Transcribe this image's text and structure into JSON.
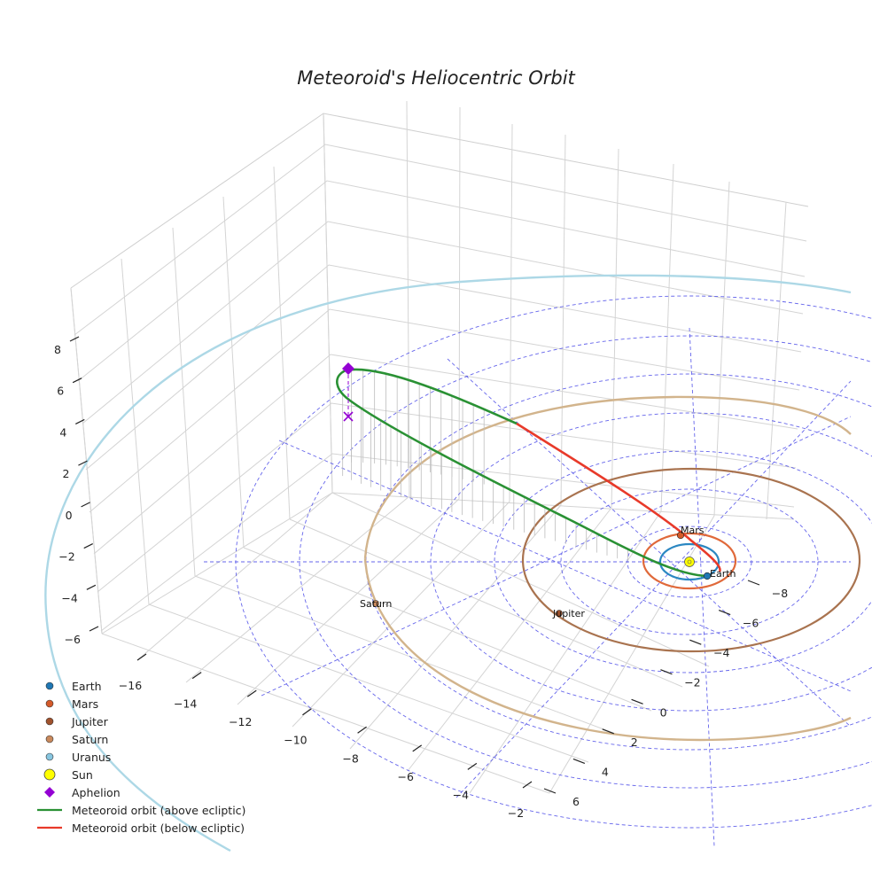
{
  "chart_data": {
    "type": "line3d",
    "title": "Meteoroid's Heliocentric Orbit",
    "axes": {
      "x_ticks": [
        -16,
        -14,
        -12,
        -10,
        -8,
        -6,
        -4,
        -2
      ],
      "y_ticks": [
        -8,
        -6,
        -4,
        -2,
        0,
        2,
        4,
        6
      ],
      "z_ticks": [
        8,
        6,
        4,
        2,
        0,
        -2,
        -4,
        -6
      ],
      "xlim": [
        -17,
        -1
      ],
      "ylim": [
        -9.5,
        7
      ],
      "zlim": [
        -7,
        9
      ]
    },
    "planets": [
      {
        "name": "Earth",
        "color": "#1f77b4",
        "orbit_color": "#2b87c2",
        "label": "Earth"
      },
      {
        "name": "Mars",
        "color": "#d45a2a",
        "orbit_color": "#e0693a",
        "label": "Mars"
      },
      {
        "name": "Jupiter",
        "color": "#a0522d",
        "orbit_color": "#a9734f",
        "label": "Jupiter"
      },
      {
        "name": "Saturn",
        "color": "#c9895c",
        "orbit_color": "#d2b48c",
        "label": "Saturn"
      },
      {
        "name": "Uranus",
        "color": "#87c6e0",
        "orbit_color": "#add8e6"
      }
    ],
    "sun": {
      "name": "Sun",
      "color": "#ffff00"
    },
    "aphelion": {
      "name": "Aphelion",
      "color": "#9400d3"
    },
    "orbit_series": [
      {
        "name": "Meteoroid orbit (above ecliptic)",
        "color": "#2a9134"
      },
      {
        "name": "Meteoroid orbit (below ecliptic)",
        "color": "#e83a2a"
      }
    ],
    "legend": [
      {
        "label": "Earth",
        "marker": "dot",
        "color": "#1f77b4"
      },
      {
        "label": "Mars",
        "marker": "dot",
        "color": "#d45a2a"
      },
      {
        "label": "Jupiter",
        "marker": "dot",
        "color": "#a0522d"
      },
      {
        "label": "Saturn",
        "marker": "dot",
        "color": "#c9895c"
      },
      {
        "label": "Uranus",
        "marker": "dot",
        "color": "#87c6e0"
      },
      {
        "label": "Sun",
        "marker": "bigdot",
        "color": "#ffff00"
      },
      {
        "label": "Aphelion",
        "marker": "diamond",
        "color": "#9400d3"
      },
      {
        "label": "Meteoroid orbit (above ecliptic)",
        "marker": "line",
        "color": "#2a9134"
      },
      {
        "label": "Meteoroid orbit (below ecliptic)",
        "marker": "line",
        "color": "#e83a2a"
      }
    ],
    "legend_position": "bottom-left"
  }
}
